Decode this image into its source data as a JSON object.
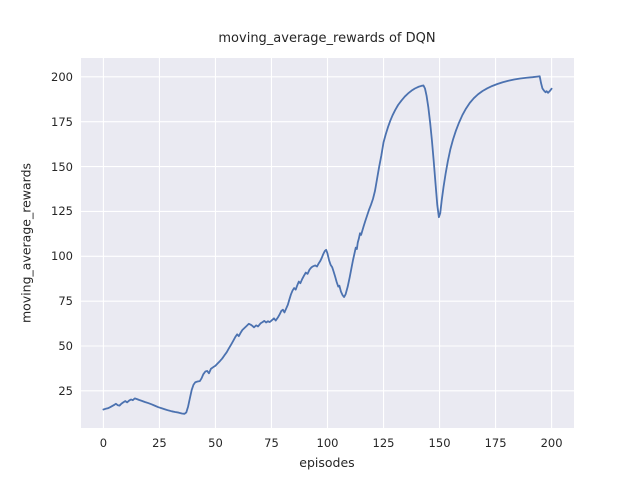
{
  "title": "moving_average_rewards of DQN",
  "colors": {
    "line": "#4c72b0",
    "plot_background": "#eaeaf2",
    "figure_background": "#ffffff",
    "grid": "#ffffff",
    "text": "#262626"
  },
  "chart_data": {
    "type": "line",
    "title": "moving_average_rewards of DQN",
    "xlabel": "episodes",
    "ylabel": "moving_average_rewards",
    "xlim": [
      -10,
      210
    ],
    "ylim": [
      4.3,
      210.5
    ],
    "x_ticks": [
      0,
      25,
      50,
      75,
      100,
      125,
      150,
      175,
      200
    ],
    "y_ticks": [
      25,
      50,
      75,
      100,
      125,
      150,
      175,
      200
    ],
    "grid": true,
    "legend_position": "none",
    "line_color": "#4c72b0",
    "line_width": 1.8,
    "series": [
      {
        "name": "moving_average_rewards",
        "points": [
          [
            0,
            14.6
          ],
          [
            1,
            15.0
          ],
          [
            2,
            15.3
          ],
          [
            3,
            15.9
          ],
          [
            4,
            16.6
          ],
          [
            5,
            17.3
          ],
          [
            5.6,
            17.8
          ],
          [
            6.4,
            17.0
          ],
          [
            7.2,
            16.8
          ],
          [
            8,
            17.8
          ],
          [
            9,
            18.7
          ],
          [
            9.8,
            19.3
          ],
          [
            10.6,
            18.6
          ],
          [
            11.5,
            19.6
          ],
          [
            12.3,
            20.2
          ],
          [
            13.1,
            19.8
          ],
          [
            14,
            20.8
          ],
          [
            15,
            20.4
          ],
          [
            16,
            19.9
          ],
          [
            17,
            19.5
          ],
          [
            18.5,
            18.8
          ],
          [
            20,
            18.2
          ],
          [
            21.5,
            17.5
          ],
          [
            23,
            16.7
          ],
          [
            24.5,
            15.9
          ],
          [
            26,
            15.3
          ],
          [
            27.5,
            14.7
          ],
          [
            29,
            14.1
          ],
          [
            30.5,
            13.6
          ],
          [
            32,
            13.2
          ],
          [
            33.5,
            12.9
          ],
          [
            35,
            12.4
          ],
          [
            36.2,
            12.2
          ],
          [
            37,
            13.0
          ],
          [
            37.8,
            16.3
          ],
          [
            38.6,
            21.0
          ],
          [
            39.4,
            25.5
          ],
          [
            40.2,
            28.4
          ],
          [
            41,
            29.8
          ],
          [
            42,
            30.2
          ],
          [
            43,
            30.4
          ],
          [
            43.8,
            32.0
          ],
          [
            44.6,
            34.3
          ],
          [
            45.5,
            35.8
          ],
          [
            46.3,
            36.1
          ],
          [
            47.1,
            34.8
          ],
          [
            48,
            37.3
          ],
          [
            49,
            38.2
          ],
          [
            50,
            39.0
          ],
          [
            51,
            40.3
          ],
          [
            52,
            41.6
          ],
          [
            53,
            43.0
          ],
          [
            54,
            44.8
          ],
          [
            55,
            46.5
          ],
          [
            56,
            48.7
          ],
          [
            57,
            50.8
          ],
          [
            58,
            53.0
          ],
          [
            59,
            55.3
          ],
          [
            59.7,
            56.5
          ],
          [
            60.4,
            55.5
          ],
          [
            61.2,
            57.3
          ],
          [
            62,
            58.9
          ],
          [
            63,
            60.1
          ],
          [
            64,
            61.3
          ],
          [
            64.9,
            62.4
          ],
          [
            65.7,
            61.9
          ],
          [
            66.5,
            61.2
          ],
          [
            67.2,
            60.4
          ],
          [
            68.2,
            61.5
          ],
          [
            69,
            60.9
          ],
          [
            70.1,
            62.6
          ],
          [
            71,
            63.3
          ],
          [
            71.8,
            64.0
          ],
          [
            72.6,
            63.1
          ],
          [
            73.4,
            63.8
          ],
          [
            74.2,
            63.3
          ],
          [
            75.2,
            64.4
          ],
          [
            76.1,
            65.4
          ],
          [
            76.9,
            64.2
          ],
          [
            77.8,
            65.8
          ],
          [
            78.6,
            67.5
          ],
          [
            79.4,
            69.6
          ],
          [
            80.1,
            70.2
          ],
          [
            80.8,
            68.7
          ],
          [
            81.6,
            71.0
          ],
          [
            82.3,
            73.0
          ],
          [
            83,
            76.0
          ],
          [
            83.7,
            78.8
          ],
          [
            84.4,
            80.9
          ],
          [
            85.1,
            82.3
          ],
          [
            85.8,
            81.4
          ],
          [
            86.5,
            83.8
          ],
          [
            87.2,
            85.9
          ],
          [
            87.9,
            85.0
          ],
          [
            88.7,
            87.3
          ],
          [
            89.5,
            89.2
          ],
          [
            90.3,
            90.9
          ],
          [
            91.1,
            90.2
          ],
          [
            92,
            92.6
          ],
          [
            92.8,
            93.8
          ],
          [
            93.7,
            94.5
          ],
          [
            94.5,
            94.9
          ],
          [
            95.3,
            94.3
          ],
          [
            96,
            95.9
          ],
          [
            96.7,
            97.2
          ],
          [
            97.4,
            99.0
          ],
          [
            98.1,
            101.2
          ],
          [
            98.8,
            102.9
          ],
          [
            99.4,
            103.6
          ],
          [
            100,
            101.5
          ],
          [
            100.7,
            97.8
          ],
          [
            101.4,
            95.2
          ],
          [
            102.1,
            93.9
          ],
          [
            102.7,
            91.6
          ],
          [
            103.4,
            88.7
          ],
          [
            104.1,
            85.6
          ],
          [
            104.8,
            83.1
          ],
          [
            105.3,
            83.6
          ],
          [
            106,
            80.3
          ],
          [
            106.7,
            78.4
          ],
          [
            107.4,
            77.3
          ],
          [
            108.1,
            78.9
          ],
          [
            109,
            83.0
          ],
          [
            109.9,
            88.3
          ],
          [
            110.7,
            93.5
          ],
          [
            111.4,
            98.0
          ],
          [
            112.1,
            101.9
          ],
          [
            112.6,
            104.8
          ],
          [
            113.1,
            104.0
          ],
          [
            113.5,
            107.6
          ],
          [
            114,
            109.9
          ],
          [
            114.5,
            112.8
          ],
          [
            115,
            111.9
          ],
          [
            115.6,
            114.5
          ],
          [
            116.2,
            117.0
          ],
          [
            116.9,
            119.8
          ],
          [
            117.7,
            122.8
          ],
          [
            118.5,
            125.8
          ],
          [
            119.4,
            128.7
          ],
          [
            120.3,
            132.0
          ],
          [
            121.2,
            136.5
          ],
          [
            122.1,
            143.0
          ],
          [
            123,
            149.5
          ],
          [
            124,
            156.0
          ],
          [
            125,
            163.5
          ],
          [
            126,
            168.0
          ],
          [
            127,
            172.0
          ],
          [
            128,
            175.5
          ],
          [
            129,
            178.5
          ],
          [
            130.2,
            181.5
          ],
          [
            131.5,
            184.3
          ],
          [
            133,
            186.8
          ],
          [
            134.5,
            189.0
          ],
          [
            136,
            190.8
          ],
          [
            137.5,
            192.3
          ],
          [
            139,
            193.5
          ],
          [
            140.5,
            194.4
          ],
          [
            142,
            195.0
          ],
          [
            142.8,
            195.2
          ],
          [
            143.5,
            193.5
          ],
          [
            144.2,
            189.5
          ],
          [
            145,
            183.0
          ],
          [
            145.8,
            174.5
          ],
          [
            146.6,
            164.5
          ],
          [
            147.4,
            153.0
          ],
          [
            148.2,
            140.5
          ],
          [
            149,
            128.5
          ],
          [
            149.7,
            121.8
          ],
          [
            150.3,
            124.0
          ],
          [
            151,
            131.5
          ],
          [
            151.8,
            138.8
          ],
          [
            152.7,
            146.0
          ],
          [
            153.7,
            153.0
          ],
          [
            154.8,
            159.5
          ],
          [
            156,
            165.0
          ],
          [
            157.3,
            170.0
          ],
          [
            158.7,
            174.5
          ],
          [
            160.2,
            178.7
          ],
          [
            161.8,
            182.3
          ],
          [
            163.5,
            185.5
          ],
          [
            165.3,
            188.1
          ],
          [
            167.2,
            190.3
          ],
          [
            169.2,
            192.1
          ],
          [
            171.3,
            193.6
          ],
          [
            173.5,
            194.9
          ],
          [
            175.8,
            196.0
          ],
          [
            178.2,
            197.0
          ],
          [
            180.7,
            197.8
          ],
          [
            183.3,
            198.5
          ],
          [
            186,
            199.1
          ],
          [
            188.8,
            199.5
          ],
          [
            191.5,
            199.8
          ],
          [
            193.5,
            200.1
          ],
          [
            194.7,
            200.3
          ],
          [
            195.3,
            196.5
          ],
          [
            195.9,
            193.6
          ],
          [
            196.6,
            192.3
          ],
          [
            197.3,
            191.4
          ],
          [
            197.8,
            192.0
          ],
          [
            198.4,
            191.1
          ],
          [
            199.2,
            192.1
          ],
          [
            200,
            193.4
          ]
        ]
      }
    ]
  }
}
